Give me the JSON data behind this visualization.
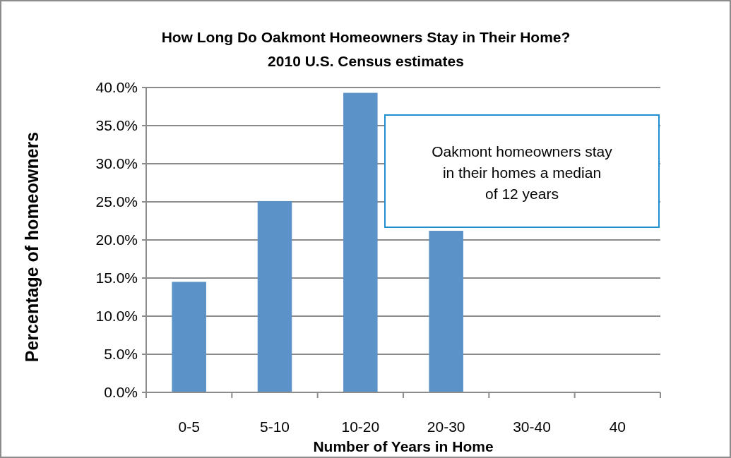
{
  "chart_data": {
    "type": "bar",
    "title": "How Long Do Oakmont Homeowners Stay in Their Home?",
    "subtitle": "2010 U.S. Census estimates",
    "xlabel": "Number of Years in Home",
    "ylabel": "Percentage of homeowners",
    "categories": [
      "0-5",
      "5-10",
      "10-20",
      "20-30",
      "30-40",
      "40"
    ],
    "values": [
      14.5,
      25.1,
      39.3,
      21.2,
      0,
      0
    ],
    "color": "#5b93c9",
    "ylim": [
      0,
      40
    ],
    "yticks": [
      {
        "value": 0,
        "label": "0.0%"
      },
      {
        "value": 5,
        "label": "5.0%"
      },
      {
        "value": 10,
        "label": "10.0%"
      },
      {
        "value": 15,
        "label": "15.0%"
      },
      {
        "value": 20,
        "label": "20.0%"
      },
      {
        "value": 25,
        "label": "25.0%"
      },
      {
        "value": 30,
        "label": "30.0%"
      },
      {
        "value": 35,
        "label": "35.0%"
      },
      {
        "value": 40,
        "label": "40.0%"
      }
    ],
    "grid": "y",
    "annotations": [
      "Oakmont homeowners stay in their homes a median of 12 years"
    ]
  }
}
